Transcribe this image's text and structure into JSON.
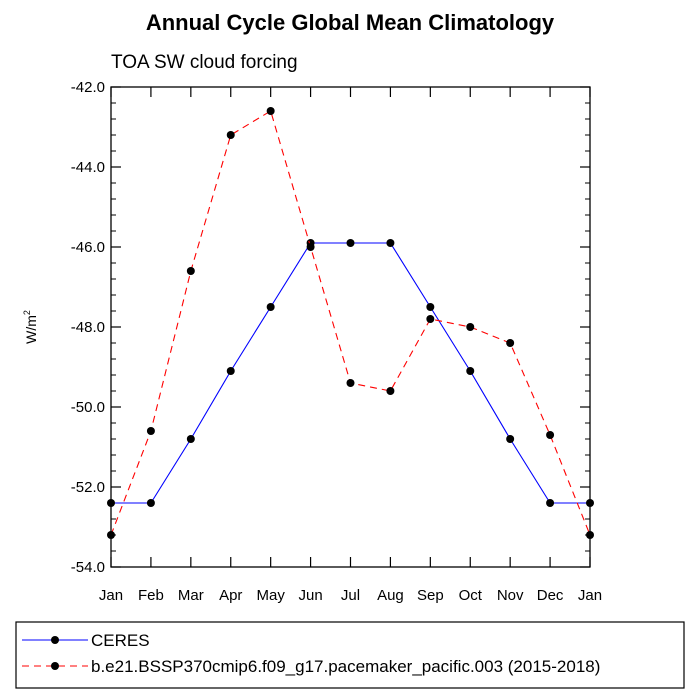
{
  "chart_data": {
    "type": "line",
    "title": "Annual Cycle Global Mean Climatology",
    "subtitle": "TOA SW cloud forcing",
    "xlabel": "",
    "ylabel": "W/m²",
    "ylabel_base": "W/m",
    "ylabel_sup": "2",
    "categories": [
      "Jan",
      "Feb",
      "Mar",
      "Apr",
      "May",
      "Jun",
      "Jul",
      "Aug",
      "Sep",
      "Oct",
      "Nov",
      "Dec",
      "Jan"
    ],
    "ylim": [
      -54.0,
      -42.0
    ],
    "yticks": [
      -42.0,
      -44.0,
      -46.0,
      -48.0,
      -50.0,
      -52.0,
      -54.0
    ],
    "ytick_labels": [
      "-42.0",
      "-44.0",
      "-46.0",
      "-48.0",
      "-50.0",
      "-52.0",
      "-54.0"
    ],
    "grid": false,
    "legend_position": "bottom",
    "series": [
      {
        "name": "CERES",
        "color": "#0000ff",
        "line_style": "solid",
        "marker": "filled-circle",
        "values": [
          -52.4,
          -52.4,
          -50.8,
          -49.1,
          -47.5,
          -45.9,
          -45.9,
          -45.9,
          -47.5,
          -49.1,
          -50.8,
          -52.4,
          -52.4
        ]
      },
      {
        "name": "b.e21.BSSP370cmip6.f09_g17.pacemaker_pacific.003 (2015-2018)",
        "color": "#ff0000",
        "line_style": "dashed",
        "marker": "filled-circle",
        "values": [
          -53.2,
          -50.6,
          -46.6,
          -43.2,
          -42.6,
          -46.0,
          -49.4,
          -49.6,
          -47.8,
          -48.0,
          -48.4,
          -50.7,
          -53.2
        ]
      }
    ]
  }
}
